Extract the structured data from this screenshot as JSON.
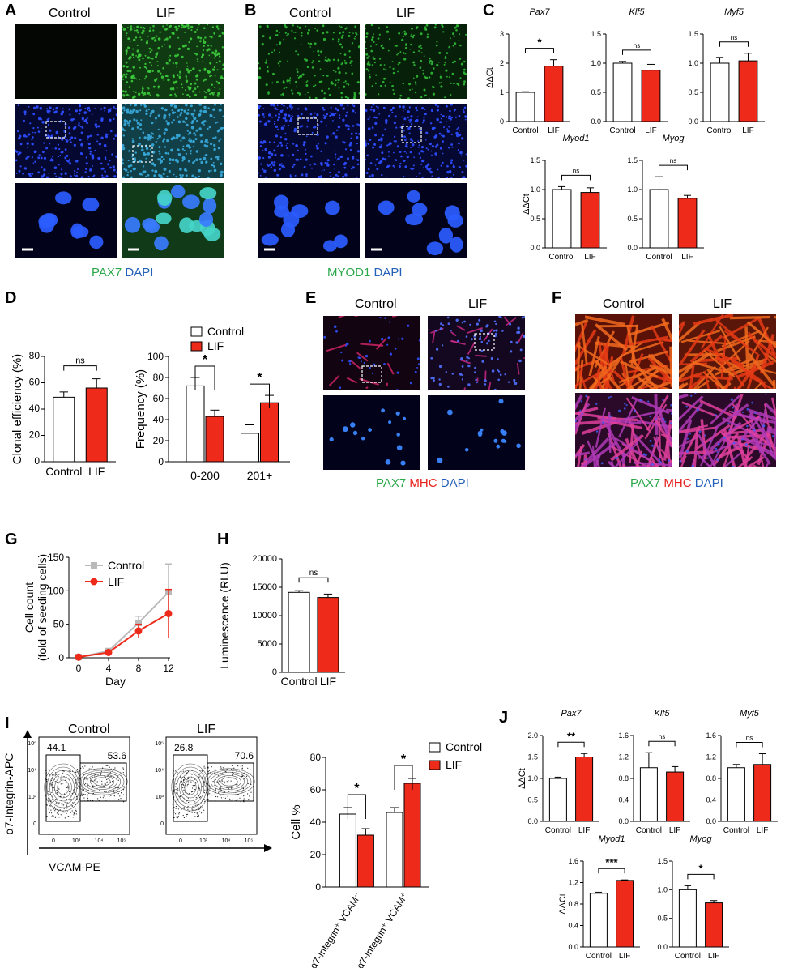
{
  "panels": {
    "A": "A",
    "B": "B",
    "C": "C",
    "D": "D",
    "E": "E",
    "F": "F",
    "G": "G",
    "H": "H",
    "I": "I",
    "J": "J"
  },
  "cond": {
    "control": "Control",
    "lif": "LIF"
  },
  "captions": {
    "A": {
      "a": "PAX7",
      "b": "DAPI"
    },
    "B": {
      "a": "MYOD1",
      "b": "DAPI"
    },
    "E": {
      "a": "PAX7",
      "b": "MHC",
      "c": "DAPI"
    },
    "F": {
      "a": "PAX7",
      "b": "MHC",
      "c": "DAPI"
    }
  },
  "colors": {
    "control_fill": "#ffffff",
    "lif_fill": "#ee2a1b",
    "green": "#2aa84a",
    "red": "#e8201c",
    "blue": "#2561b8"
  },
  "chart_data": [
    {
      "id": "C-Pax7",
      "type": "bar",
      "title": "Pax7",
      "categories": [
        "Control",
        "LIF"
      ],
      "values": [
        1.0,
        1.9
      ],
      "errors": [
        0.02,
        0.22
      ],
      "ylabel": "ΔΔCt",
      "ylim": [
        0,
        3
      ],
      "yticks": [
        0,
        1,
        2,
        3
      ],
      "sig": "*"
    },
    {
      "id": "C-Klf5",
      "type": "bar",
      "title": "Klf5",
      "categories": [
        "Control",
        "LIF"
      ],
      "values": [
        1.0,
        0.88
      ],
      "errors": [
        0.03,
        0.1
      ],
      "ylim": [
        0,
        1.5
      ],
      "yticks": [
        0.0,
        0.5,
        1.0,
        1.5
      ],
      "sig": "ns"
    },
    {
      "id": "C-Myf5",
      "type": "bar",
      "title": "Myf5",
      "categories": [
        "Control",
        "LIF"
      ],
      "values": [
        1.0,
        1.04
      ],
      "errors": [
        0.1,
        0.13
      ],
      "ylim": [
        0,
        1.5
      ],
      "yticks": [
        0.0,
        0.5,
        1.0,
        1.5
      ],
      "sig": "ns"
    },
    {
      "id": "C-Myod1",
      "type": "bar",
      "title": "Myod1",
      "categories": [
        "Control",
        "LIF"
      ],
      "values": [
        1.0,
        0.95
      ],
      "errors": [
        0.05,
        0.08
      ],
      "ylabel": "ΔΔCt",
      "ylim": [
        0,
        1.5
      ],
      "yticks": [
        0.0,
        0.5,
        1.0,
        1.5
      ],
      "sig": "ns"
    },
    {
      "id": "C-Myog",
      "type": "bar",
      "title": "Myog",
      "categories": [
        "Control",
        "LIF"
      ],
      "values": [
        1.0,
        0.85
      ],
      "errors": [
        0.22,
        0.05
      ],
      "ylim": [
        0,
        1.5
      ],
      "yticks": [
        0.0,
        0.5,
        1.0,
        1.5
      ],
      "sig": "ns"
    },
    {
      "id": "D-clonal",
      "type": "bar",
      "categories": [
        "Control",
        "LIF"
      ],
      "values": [
        49,
        56
      ],
      "errors": [
        4,
        7
      ],
      "ylabel": "Clonal efficiency (%)",
      "ylim": [
        0,
        80
      ],
      "yticks": [
        0,
        20,
        40,
        60,
        80
      ],
      "sig": "ns"
    },
    {
      "id": "D-freq",
      "type": "bar",
      "categories": [
        "0-200",
        "201+"
      ],
      "series": [
        {
          "name": "Control",
          "values": [
            72,
            27
          ],
          "errors": [
            8,
            8
          ]
        },
        {
          "name": "LIF",
          "values": [
            43,
            56
          ],
          "errors": [
            6,
            7
          ]
        }
      ],
      "ylabel": "Frequency (%)",
      "ylim": [
        0,
        100
      ],
      "yticks": [
        0,
        20,
        40,
        60,
        80,
        100
      ],
      "sig": [
        "*",
        "*"
      ],
      "legend": "top"
    },
    {
      "id": "G",
      "type": "line",
      "x": [
        0,
        4,
        8,
        12
      ],
      "series": [
        {
          "name": "Control",
          "values": [
            1,
            10,
            52,
            98
          ],
          "errors": [
            1,
            3,
            10,
            42
          ]
        },
        {
          "name": "LIF",
          "values": [
            1,
            8,
            40,
            66
          ],
          "errors": [
            1,
            3,
            10,
            36
          ]
        }
      ],
      "xlabel": "Day",
      "ylabel": "Cell count (fold of seeding cells)",
      "xticks": [
        0,
        4,
        8,
        12
      ],
      "ylim": [
        0,
        150
      ],
      "yticks": [
        0,
        50,
        100,
        150
      ],
      "legend": "top-left"
    },
    {
      "id": "H",
      "type": "bar",
      "categories": [
        "Control",
        "LIF"
      ],
      "values": [
        14100,
        13200
      ],
      "errors": [
        300,
        600
      ],
      "ylabel": "Luminescence (RLU)",
      "ylim": [
        0,
        20000
      ],
      "yticks": [
        0,
        5000,
        10000,
        15000,
        20000
      ],
      "sig": "ns"
    },
    {
      "id": "I-bar",
      "type": "bar",
      "categories": [
        "α7-Integrin⁺ VCAM⁻",
        "α7-Integrin⁺ VCAM⁺"
      ],
      "series": [
        {
          "name": "Control",
          "values": [
            45,
            46
          ],
          "errors": [
            4,
            3
          ]
        },
        {
          "name": "LIF",
          "values": [
            32,
            64
          ],
          "errors": [
            4,
            3
          ]
        }
      ],
      "ylabel": "Cell %",
      "ylim": [
        0,
        80
      ],
      "yticks": [
        0,
        20,
        40,
        60,
        80
      ],
      "sig": [
        "*",
        "*"
      ],
      "legend": "right"
    },
    {
      "id": "J-Pax7",
      "type": "bar",
      "title": "Pax7",
      "categories": [
        "Control",
        "LIF"
      ],
      "values": [
        1.0,
        1.5
      ],
      "errors": [
        0.03,
        0.08
      ],
      "ylabel": "ΔΔCt",
      "ylim": [
        0,
        2.0
      ],
      "yticks": [
        0.0,
        0.5,
        1.0,
        1.5,
        2.0
      ],
      "sig": "**"
    },
    {
      "id": "J-Klf5",
      "type": "bar",
      "title": "Klf5",
      "categories": [
        "Control",
        "LIF"
      ],
      "values": [
        1.0,
        0.92
      ],
      "errors": [
        0.28,
        0.1
      ],
      "ylim": [
        0,
        1.6
      ],
      "yticks": [
        0.0,
        0.4,
        0.8,
        1.2,
        1.6
      ],
      "sig": "ns"
    },
    {
      "id": "J-Myf5",
      "type": "bar",
      "title": "Myf5",
      "categories": [
        "Control",
        "LIF"
      ],
      "values": [
        1.0,
        1.06
      ],
      "errors": [
        0.06,
        0.2
      ],
      "ylim": [
        0,
        1.6
      ],
      "yticks": [
        0.0,
        0.4,
        0.8,
        1.2,
        1.6
      ],
      "sig": "ns"
    },
    {
      "id": "J-Myod1",
      "type": "bar",
      "title": "Myod1",
      "categories": [
        "Control",
        "LIF"
      ],
      "values": [
        1.0,
        1.24
      ],
      "errors": [
        0.02,
        0.01
      ],
      "ylabel": "ΔΔCt",
      "ylim": [
        0,
        1.6
      ],
      "yticks": [
        0.0,
        0.4,
        0.8,
        1.2,
        1.6
      ],
      "sig": "***"
    },
    {
      "id": "J-Myog",
      "type": "bar",
      "title": "Myog",
      "categories": [
        "Control",
        "LIF"
      ],
      "values": [
        1.0,
        0.77
      ],
      "errors": [
        0.07,
        0.04
      ],
      "ylim": [
        0,
        1.5
      ],
      "yticks": [
        0.0,
        0.5,
        1.0,
        1.5
      ],
      "sig": "*"
    }
  ],
  "flow": {
    "xlabel": "VCAM-PE",
    "ylabel": "α7-Integrin-APC",
    "plots": [
      {
        "title": "Control",
        "gate_left": "44.1",
        "gate_right": "53.6"
      },
      {
        "title": "LIF",
        "gate_left": "26.8",
        "gate_right": "70.6"
      }
    ],
    "ticks": [
      "10⁵",
      "10⁴",
      "10³",
      "0"
    ],
    "xticks": [
      "0",
      "10³",
      "10⁴",
      "10⁵"
    ]
  }
}
